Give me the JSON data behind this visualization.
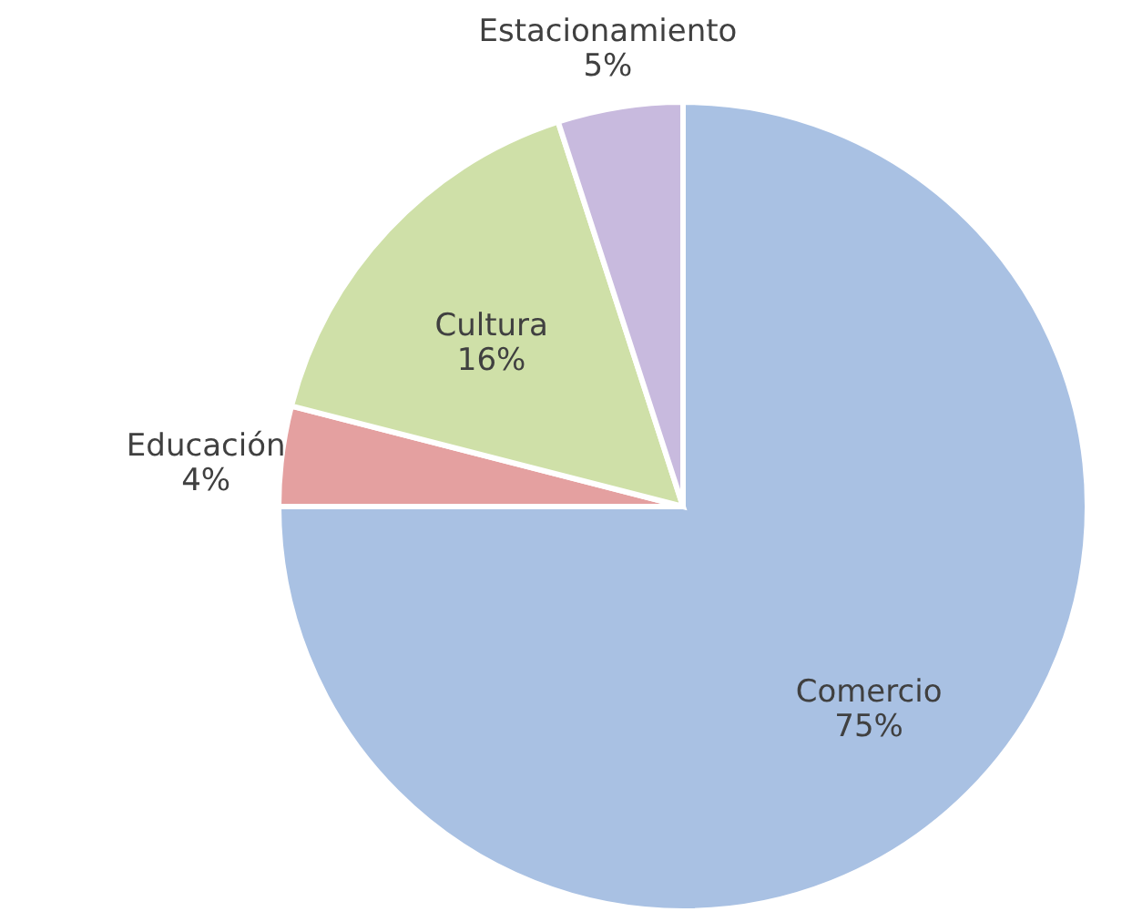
{
  "chart_data": {
    "type": "pie",
    "categories": [
      "Comercio",
      "Educación",
      "Cultura",
      "Estacionamiento"
    ],
    "values": [
      75,
      4,
      16,
      5
    ],
    "value_labels": [
      "75%",
      "4%",
      "16%",
      "5%"
    ],
    "colors": [
      "#a9c1e3",
      "#e4a0a0",
      "#cfe0a8",
      "#c8bade"
    ],
    "legend": false
  }
}
